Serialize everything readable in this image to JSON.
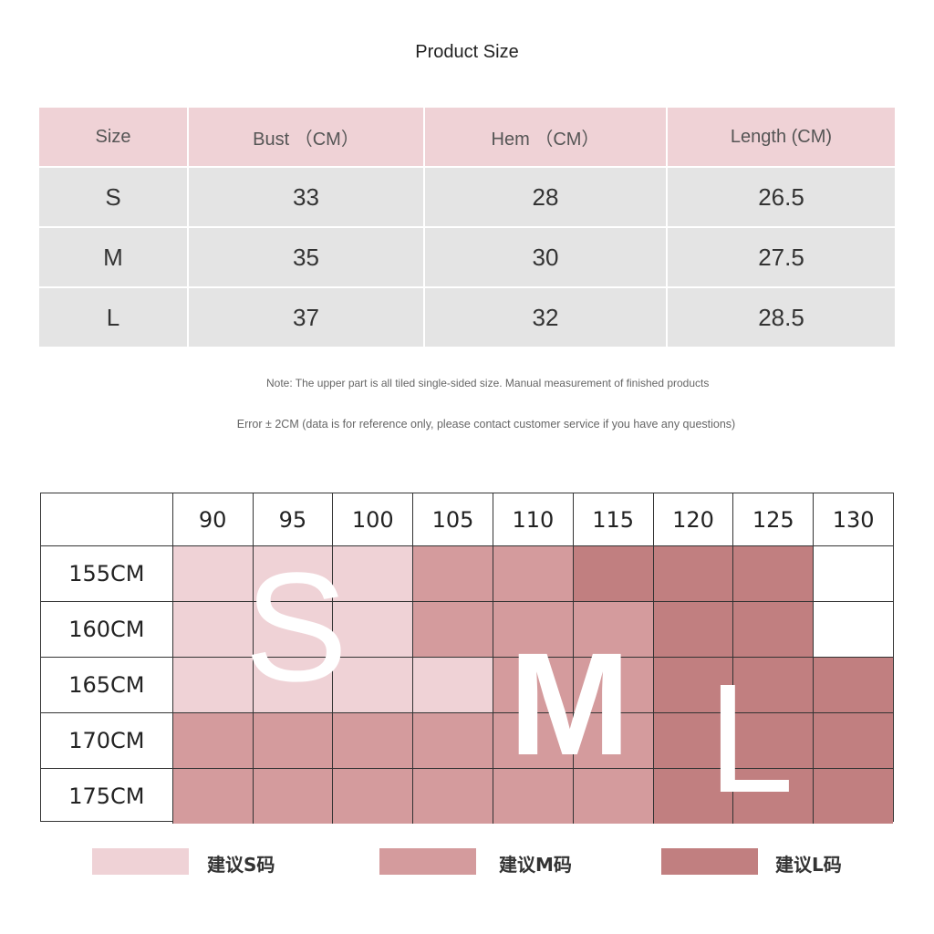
{
  "title": "Product Size",
  "size_table": {
    "headers": [
      "Size",
      "Bust （CM）",
      "Hem （CM）",
      "Length (CM)"
    ],
    "rows": [
      [
        "S",
        "33",
        "28",
        "26.5"
      ],
      [
        "M",
        "35",
        "30",
        "27.5"
      ],
      [
        "L",
        "37",
        "32",
        "28.5"
      ]
    ]
  },
  "note_line1": "Note: The upper part is all tiled single-sided size. Manual measurement of finished products",
  "note_line2": "Error ± 2CM (data is for reference only, please contact customer service if you have any questions)",
  "grid": {
    "weights": [
      "90",
      "95",
      "100",
      "105",
      "110",
      "115",
      "120",
      "125",
      "130"
    ],
    "heights": [
      "155CM",
      "160CM",
      "165CM",
      "170CM",
      "175CM"
    ],
    "cells": [
      [
        "S",
        "S",
        "S",
        "M",
        "M",
        "L",
        "L",
        "L",
        "none"
      ],
      [
        "S",
        "S",
        "S",
        "M",
        "M",
        "M",
        "L",
        "L",
        "none"
      ],
      [
        "S",
        "S",
        "S",
        "S",
        "M",
        "M",
        "L",
        "L",
        "L"
      ],
      [
        "M",
        "M",
        "M",
        "M",
        "M",
        "M",
        "L",
        "L",
        "L"
      ],
      [
        "M",
        "M",
        "M",
        "M",
        "M",
        "M",
        "L",
        "L",
        "L"
      ]
    ],
    "big_letters": [
      "S",
      "M",
      "L"
    ]
  },
  "colors": {
    "S": "#efd2d6",
    "M": "#d49b9d",
    "L": "#c17f80"
  },
  "legend": [
    {
      "label": "建议S码",
      "size": "S"
    },
    {
      "label": "建议M码",
      "size": "M"
    },
    {
      "label": "建议L码",
      "size": "L"
    }
  ]
}
